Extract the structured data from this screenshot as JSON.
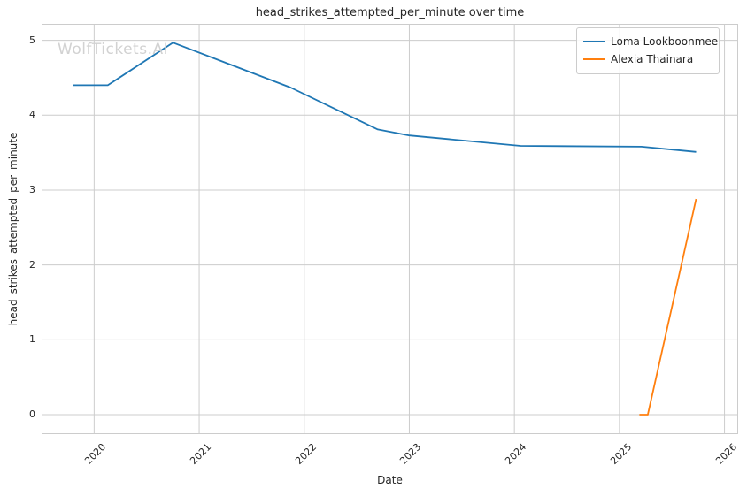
{
  "chart_data": {
    "type": "line",
    "title": "head_strikes_attempted_per_minute over time",
    "xlabel": "Date",
    "ylabel": "head_strikes_attempted_per_minute",
    "watermark": "WolfTickets.AI",
    "xlim": [
      2019.5,
      2026.13
    ],
    "ylim": [
      -0.26,
      5.22
    ],
    "x_tick_values": [
      2020,
      2021,
      2022,
      2023,
      2024,
      2025,
      2026
    ],
    "x_tick_labels": [
      "2020",
      "2021",
      "2022",
      "2023",
      "2024",
      "2025",
      "2026"
    ],
    "y_tick_values": [
      0,
      1,
      2,
      3,
      4,
      5
    ],
    "y_tick_labels": [
      "0",
      "1",
      "2",
      "3",
      "4",
      "5"
    ],
    "grid": true,
    "legend_position": "upper right",
    "colors": {
      "grid": "#cccccc",
      "axes_edge": "#cccccc",
      "text": "#262626",
      "watermark": "#d2d2d2",
      "series_blue": "#1f77b4",
      "series_orange": "#ff7f0e"
    },
    "series": [
      {
        "name": "Loma Lookboonmee",
        "color": "#1f77b4",
        "x": [
          2019.8,
          2020.13,
          2020.75,
          2021.87,
          2022.7,
          2023.0,
          2024.06,
          2025.21,
          2025.73
        ],
        "y": [
          4.4,
          4.4,
          4.97,
          4.37,
          3.81,
          3.73,
          3.59,
          3.58,
          3.51
        ]
      },
      {
        "name": "Alexia Thainara",
        "color": "#ff7f0e",
        "x": [
          2025.19,
          2025.27,
          2025.73
        ],
        "y": [
          0.0,
          0.0,
          2.88
        ]
      }
    ]
  }
}
